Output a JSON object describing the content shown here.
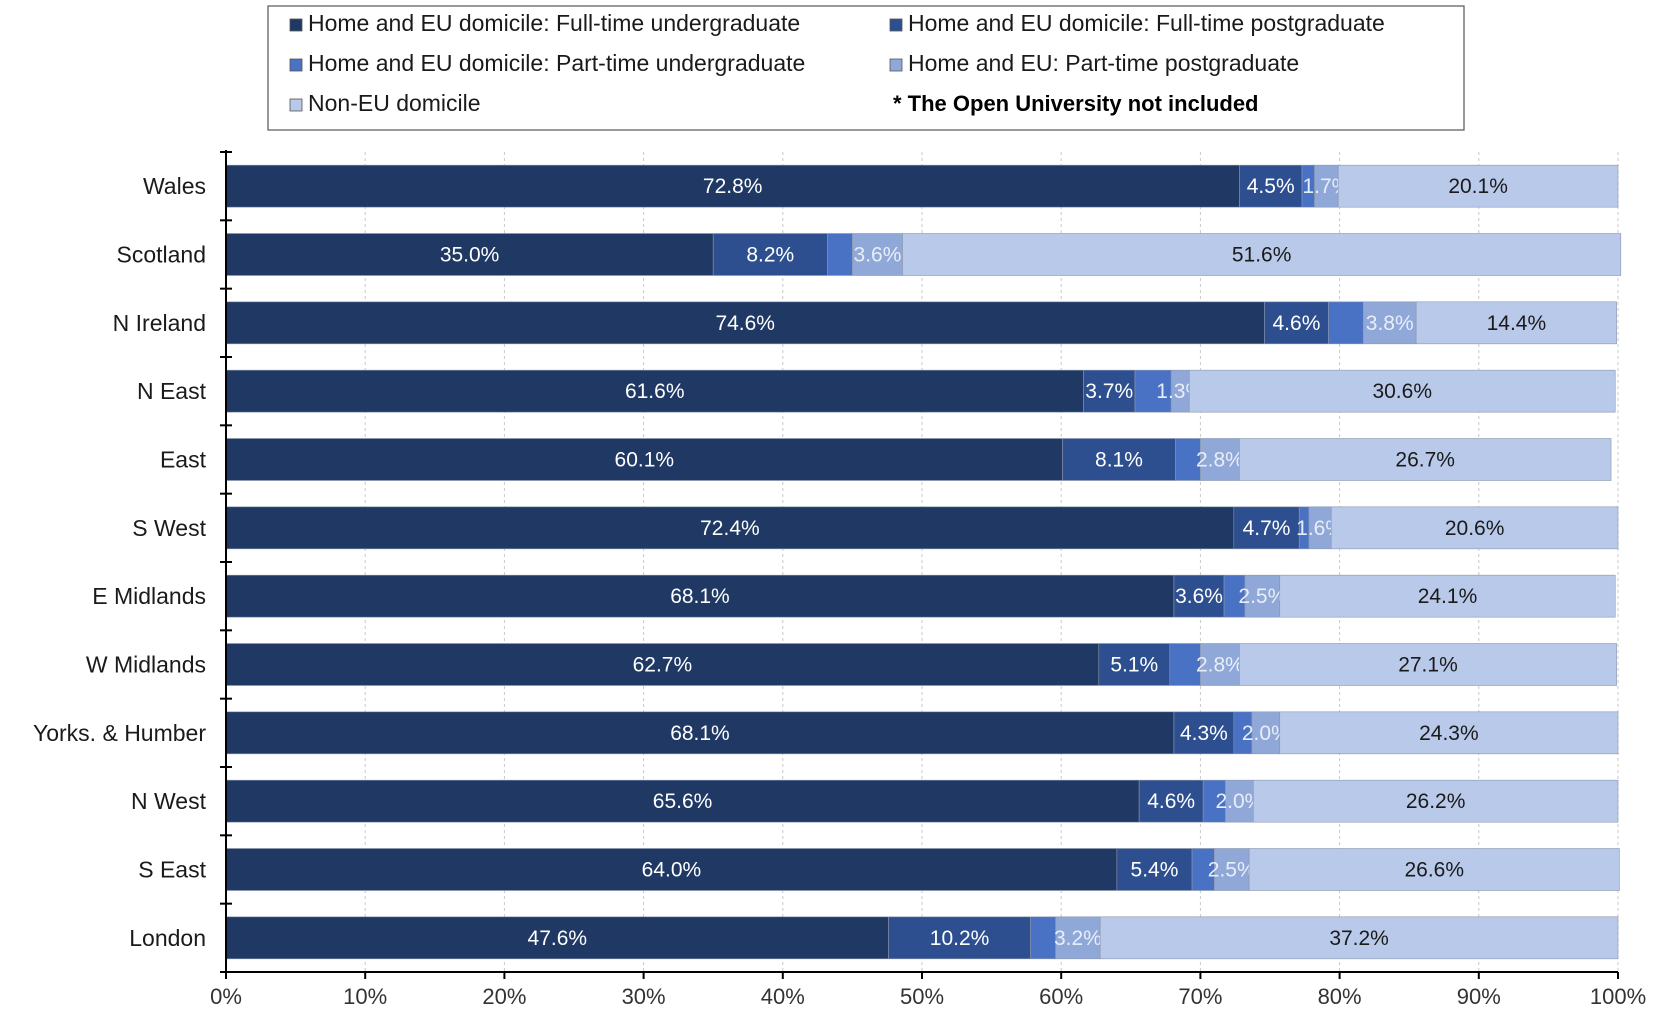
{
  "chart_data": {
    "type": "bar",
    "orientation": "horizontal",
    "stacked": true,
    "categories": [
      "Wales",
      "Scotland",
      "N Ireland",
      "N East",
      "East",
      "S West",
      "E Midlands",
      "W Midlands",
      "Yorks. & Humber",
      "N West",
      "S East",
      "London"
    ],
    "series": [
      {
        "name": "Home and EU domicile: Full-time undergraduate",
        "color": "#1f3864",
        "label_color": "#ffffff",
        "values": [
          72.8,
          35.0,
          74.6,
          61.6,
          60.1,
          72.4,
          68.1,
          62.7,
          68.1,
          65.6,
          64.0,
          47.6
        ],
        "labels": [
          "72.8%",
          "35.0%",
          "74.6%",
          "61.6%",
          "60.1%",
          "72.4%",
          "68.1%",
          "62.7%",
          "68.1%",
          "65.6%",
          "64.0%",
          "47.6%"
        ]
      },
      {
        "name": "Home and EU domicile: Full-time postgraduate",
        "color": "#2e4f8f",
        "label_color": "#ffffff",
        "values": [
          4.5,
          8.2,
          4.6,
          3.7,
          8.1,
          4.7,
          3.6,
          5.1,
          4.3,
          4.6,
          5.4,
          10.2
        ],
        "labels": [
          "4.5%",
          "8.2%",
          "4.6%",
          "3.7%",
          "8.1%",
          "4.7%",
          "3.6%",
          "5.1%",
          "4.3%",
          "4.6%",
          "5.4%",
          "10.2%"
        ]
      },
      {
        "name": "Home and EU domicile: Part-time undergraduate",
        "color": "#4a72c4",
        "label_color": "#ffffff",
        "values": [
          0.9,
          1.8,
          2.5,
          2.6,
          1.8,
          0.7,
          1.5,
          2.2,
          1.3,
          1.6,
          1.6,
          1.8
        ],
        "labels": [
          "",
          "",
          "",
          "",
          "",
          "",
          "",
          "",
          "",
          "",
          "",
          ""
        ]
      },
      {
        "name": "Home and EU: Part-time postgraduate",
        "color": "#90a8d8",
        "label_color": "#e8eef8",
        "values": [
          1.7,
          3.6,
          3.8,
          1.3,
          2.8,
          1.6,
          2.5,
          2.8,
          2.0,
          2.0,
          2.5,
          3.2
        ],
        "labels": [
          "1.7%",
          "3.6%",
          "3.8%",
          "1.3%",
          "2.8%",
          "1.6%",
          "2.5%",
          "2.8%",
          "2.0%",
          "2.0%",
          "2.5%",
          "3.2%"
        ]
      },
      {
        "name": "Non-EU domicile",
        "color": "#b8c9ea",
        "label_color": "#1a1a1a",
        "values": [
          20.1,
          51.6,
          14.4,
          30.6,
          26.7,
          20.6,
          24.1,
          27.1,
          24.3,
          26.2,
          26.6,
          37.2
        ],
        "labels": [
          "20.1%",
          "51.6%",
          "14.4%",
          "30.6%",
          "26.7%",
          "20.6%",
          "24.1%",
          "27.1%",
          "24.3%",
          "26.2%",
          "26.6%",
          "37.2%"
        ]
      }
    ],
    "xlim": [
      0,
      100
    ],
    "x_ticks": [
      "0%",
      "10%",
      "20%",
      "30%",
      "40%",
      "50%",
      "60%",
      "70%",
      "80%",
      "90%",
      "100%"
    ],
    "grid": true,
    "legend_position": "top",
    "note": "* The Open University not included"
  }
}
